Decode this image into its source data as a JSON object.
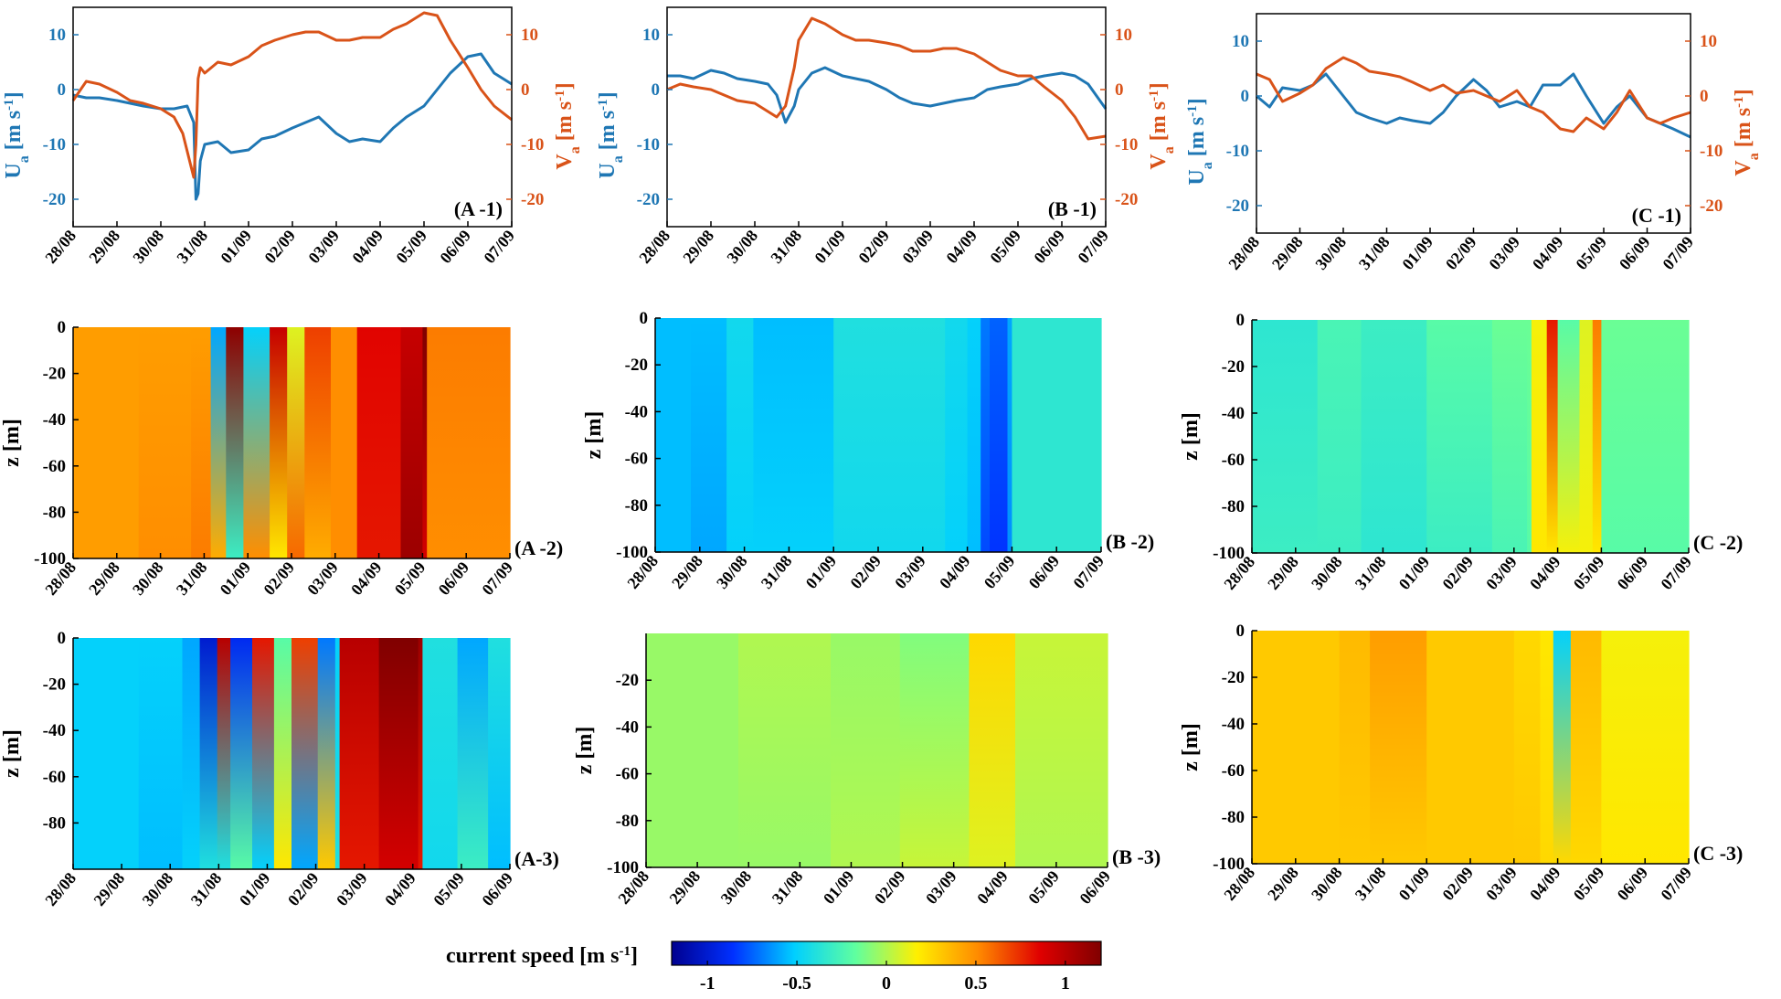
{
  "colors": {
    "ua": "#1f77b4",
    "va": "#d95319",
    "axis": "#000000"
  },
  "colormap": [
    "#00008f",
    "#0030ff",
    "#00cfff",
    "#60ff9f",
    "#ffef00",
    "#ff8a00",
    "#e00000",
    "#800000"
  ],
  "dates_full": [
    "28/08",
    "29/08",
    "30/08",
    "31/08",
    "01/09",
    "02/09",
    "03/09",
    "04/09",
    "05/09",
    "06/09",
    "07/09"
  ],
  "dates_short": [
    "28/08",
    "29/08",
    "30/08",
    "31/08",
    "01/09",
    "02/09",
    "03/09",
    "04/09",
    "05/09",
    "06/09"
  ],
  "line_labels": {
    "ua": "U",
    "ua_sub": "a",
    "ua_unit": "[m s",
    "va": "V",
    "va_sub": "a",
    "va_unit": "[m s",
    "exp": "-1",
    "close": "]"
  },
  "z_label": "z [m]",
  "colorbar": {
    "label": "current speed [m s",
    "label_exp": "-1",
    "label_close": "]",
    "ticks": [
      "-1",
      "-0.5",
      "0",
      "0.5",
      "1"
    ],
    "tick_values": [
      -1,
      -0.5,
      0,
      0.5,
      1
    ],
    "range": [
      -1.2,
      1.2
    ]
  },
  "chart_data": [
    {
      "id": "A-1",
      "type": "line",
      "panel_label": "(A -1)",
      "x_range": [
        0,
        10
      ],
      "ylim_left": [
        -25,
        15
      ],
      "ylim_right": [
        -25,
        15
      ],
      "yticks_left": [
        "10",
        "0",
        "-10",
        "-20"
      ],
      "ytick_values_left": [
        10,
        0,
        -10,
        -20
      ],
      "yticks_right": [
        "10",
        "0",
        "-10",
        "-20"
      ],
      "ytick_values_right": [
        10,
        0,
        -10,
        -20
      ],
      "series": [
        {
          "name": "Ua",
          "axis": "left",
          "x": [
            0,
            0.3,
            0.6,
            1,
            1.3,
            1.6,
            2,
            2.3,
            2.6,
            2.75,
            2.8,
            2.85,
            2.9,
            3,
            3.3,
            3.6,
            4,
            4.3,
            4.6,
            5,
            5.3,
            5.6,
            6,
            6.3,
            6.6,
            7,
            7.3,
            7.6,
            8,
            8.3,
            8.6,
            9,
            9.3,
            9.6,
            10
          ],
          "values": [
            -1,
            -1.5,
            -1.5,
            -2,
            -2.5,
            -3,
            -3.5,
            -3.5,
            -3,
            -6,
            -20,
            -19,
            -13,
            -10,
            -9.5,
            -11.5,
            -11,
            -9,
            -8.5,
            -7,
            -6,
            -5,
            -8,
            -9.5,
            -9,
            -9.5,
            -7,
            -5,
            -3,
            0,
            3,
            6,
            6.5,
            3,
            1
          ]
        },
        {
          "name": "Va",
          "axis": "right",
          "x": [
            0,
            0.3,
            0.6,
            1,
            1.3,
            1.6,
            2,
            2.3,
            2.5,
            2.75,
            2.8,
            2.85,
            2.9,
            3,
            3.3,
            3.6,
            4,
            4.3,
            4.6,
            5,
            5.3,
            5.6,
            6,
            6.3,
            6.6,
            7,
            7.3,
            7.6,
            8,
            8.3,
            8.6,
            9,
            9.3,
            9.6,
            10
          ],
          "values": [
            -2,
            1.5,
            1,
            -0.5,
            -2,
            -2.5,
            -3.5,
            -5,
            -8,
            -16,
            -10,
            2,
            4,
            3,
            5,
            4.5,
            6,
            8,
            9,
            10,
            10.5,
            10.5,
            9,
            9,
            9.5,
            9.5,
            11,
            12,
            14,
            13.5,
            9,
            4,
            0,
            -3,
            -5.5
          ]
        }
      ]
    },
    {
      "id": "B-1",
      "type": "line",
      "panel_label": "(B -1)",
      "x_range": [
        0,
        10
      ],
      "ylim_left": [
        -25,
        15
      ],
      "ylim_right": [
        -25,
        15
      ],
      "yticks_left": [
        "10",
        "0",
        "-10",
        "-20"
      ],
      "ytick_values_left": [
        10,
        0,
        -10,
        -20
      ],
      "yticks_right": [
        "10",
        "0",
        "-10",
        "-20"
      ],
      "ytick_values_right": [
        10,
        0,
        -10,
        -20
      ],
      "series": [
        {
          "name": "Ua",
          "axis": "left",
          "x": [
            0,
            0.3,
            0.6,
            1,
            1.3,
            1.6,
            2,
            2.3,
            2.5,
            2.7,
            2.9,
            3,
            3.3,
            3.6,
            4,
            4.3,
            4.6,
            5,
            5.3,
            5.6,
            6,
            6.3,
            6.6,
            7,
            7.3,
            7.6,
            8,
            8.3,
            8.6,
            9,
            9.3,
            9.6,
            10
          ],
          "values": [
            2.5,
            2.5,
            2,
            3.5,
            3,
            2,
            1.5,
            1,
            -1,
            -6,
            -3,
            0,
            3,
            4,
            2.5,
            2,
            1.5,
            0,
            -1.5,
            -2.5,
            -3,
            -2.5,
            -2,
            -1.5,
            0,
            0.5,
            1,
            2,
            2.5,
            3,
            2.5,
            1,
            -3.5
          ]
        },
        {
          "name": "Va",
          "axis": "right",
          "x": [
            0,
            0.3,
            0.6,
            1,
            1.3,
            1.6,
            2,
            2.3,
            2.5,
            2.7,
            2.9,
            3,
            3.3,
            3.6,
            4,
            4.3,
            4.6,
            5,
            5.3,
            5.6,
            6,
            6.3,
            6.6,
            7,
            7.3,
            7.6,
            8,
            8.3,
            8.6,
            9,
            9.3,
            9.6,
            10
          ],
          "values": [
            0,
            1,
            0.5,
            0,
            -1,
            -2,
            -2.5,
            -4,
            -5,
            -3,
            4,
            9,
            13,
            12,
            10,
            9,
            9,
            8.5,
            8,
            7,
            7,
            7.5,
            7.5,
            6.5,
            5,
            3.5,
            2.5,
            2.5,
            0.5,
            -2,
            -5,
            -9,
            -8.5
          ]
        }
      ]
    },
    {
      "id": "C-1",
      "type": "line",
      "panel_label": "(C -1)",
      "x_range": [
        0,
        10
      ],
      "ylim_left": [
        -25,
        15
      ],
      "ylim_right": [
        -25,
        15
      ],
      "yticks_left": [
        "10",
        "0",
        "-10",
        "-20"
      ],
      "ytick_values_left": [
        10,
        0,
        -10,
        -20
      ],
      "yticks_right": [
        "10",
        "0",
        "-10",
        "-20"
      ],
      "ytick_values_right": [
        10,
        0,
        -10,
        -20
      ],
      "series": [
        {
          "name": "Ua",
          "axis": "left",
          "x": [
            0,
            0.3,
            0.6,
            1,
            1.3,
            1.6,
            2,
            2.3,
            2.6,
            3,
            3.3,
            3.6,
            4,
            4.3,
            4.6,
            5,
            5.3,
            5.6,
            6,
            6.3,
            6.6,
            7,
            7.3,
            7.6,
            8,
            8.3,
            8.6,
            9,
            9.3,
            9.6,
            10
          ],
          "values": [
            0,
            -2,
            1.5,
            1,
            2,
            4,
            0,
            -3,
            -4,
            -5,
            -4,
            -4.5,
            -5,
            -3,
            0,
            3,
            1,
            -2,
            -1,
            -2,
            2,
            2,
            4,
            0,
            -5,
            -2,
            0,
            -4,
            -5,
            -6,
            -7.5
          ]
        },
        {
          "name": "Va",
          "axis": "right",
          "x": [
            0,
            0.3,
            0.6,
            1,
            1.3,
            1.6,
            2,
            2.3,
            2.6,
            3,
            3.3,
            3.6,
            4,
            4.3,
            4.6,
            5,
            5.3,
            5.6,
            6,
            6.3,
            6.6,
            7,
            7.3,
            7.6,
            8,
            8.3,
            8.6,
            9,
            9.3,
            9.6,
            10
          ],
          "values": [
            4,
            3,
            -1,
            0.5,
            2,
            5,
            7,
            6,
            4.5,
            4,
            3.5,
            2.5,
            1,
            2,
            0.5,
            1,
            0,
            -1,
            1,
            -2,
            -3,
            -6,
            -6.5,
            -4,
            -6,
            -3,
            1,
            -4,
            -5,
            -4,
            -3
          ]
        }
      ]
    },
    {
      "id": "A-2",
      "type": "heatmap",
      "panel_label": "(A -2)",
      "x_range": [
        0,
        10
      ],
      "z_range": [
        -100,
        0
      ],
      "yticks": [
        "0",
        "-20",
        "-40",
        "-60",
        "-80",
        "-100"
      ],
      "ytick_values": [
        0,
        -20,
        -40,
        -60,
        -80,
        -100
      ],
      "x_labels": "full",
      "columns": [
        {
          "x": 0,
          "top": 0.45,
          "bottom": 0.45
        },
        {
          "x": 1.5,
          "top": 0.45,
          "bottom": 0.5
        },
        {
          "x": 2.7,
          "top": 0.45,
          "bottom": 0.55
        },
        {
          "x": 3.15,
          "top": -0.6,
          "bottom": 0.4
        },
        {
          "x": 3.5,
          "top": 1.15,
          "bottom": -0.3
        },
        {
          "x": 3.9,
          "top": -0.5,
          "bottom": 0.5
        },
        {
          "x": 4.5,
          "top": 0.95,
          "bottom": 0.2
        },
        {
          "x": 4.9,
          "top": 0.1,
          "bottom": 0.6
        },
        {
          "x": 5.3,
          "top": 0.7,
          "bottom": 0.4
        },
        {
          "x": 5.9,
          "top": 0.5,
          "bottom": 0.5
        },
        {
          "x": 6.5,
          "top": 0.85,
          "bottom": 0.8
        },
        {
          "x": 7.5,
          "top": 0.95,
          "bottom": 1.1
        },
        {
          "x": 8.0,
          "top": 1.2,
          "bottom": 0.9
        },
        {
          "x": 8.1,
          "top": 0.55,
          "bottom": 0.5
        },
        {
          "x": 9.0,
          "top": 0.55,
          "bottom": 0.5
        },
        {
          "x": 10,
          "top": 0.45,
          "bottom": 0.4
        }
      ]
    },
    {
      "id": "B-2",
      "type": "heatmap",
      "panel_label": "(B -2)",
      "x_range": [
        0,
        10
      ],
      "z_range": [
        -100,
        0
      ],
      "yticks": [
        "0",
        "-20",
        "-40",
        "-60",
        "-80",
        "-100"
      ],
      "ytick_values": [
        0,
        -20,
        -40,
        -60,
        -80,
        -100
      ],
      "x_labels": "full",
      "columns": [
        {
          "x": 0,
          "top": -0.55,
          "bottom": -0.55
        },
        {
          "x": 0.8,
          "top": -0.55,
          "bottom": -0.6
        },
        {
          "x": 1.6,
          "top": -0.45,
          "bottom": -0.5
        },
        {
          "x": 2.2,
          "top": -0.55,
          "bottom": -0.5
        },
        {
          "x": 4.0,
          "top": -0.4,
          "bottom": -0.45
        },
        {
          "x": 6.5,
          "top": -0.45,
          "bottom": -0.5
        },
        {
          "x": 7.0,
          "top": -0.5,
          "bottom": -0.55
        },
        {
          "x": 7.3,
          "top": -0.7,
          "bottom": -0.8
        },
        {
          "x": 7.5,
          "top": -0.75,
          "bottom": -0.85
        },
        {
          "x": 7.9,
          "top": -0.6,
          "bottom": -0.65
        },
        {
          "x": 8.0,
          "top": -0.35,
          "bottom": -0.35
        },
        {
          "x": 10,
          "top": -0.35,
          "bottom": -0.35
        }
      ]
    },
    {
      "id": "C-2",
      "type": "heatmap",
      "panel_label": "(C -2)",
      "x_range": [
        0,
        10
      ],
      "z_range": [
        -100,
        0
      ],
      "yticks": [
        "0",
        "-20",
        "-40",
        "-60",
        "-80",
        "-100"
      ],
      "ytick_values": [
        0,
        -20,
        -40,
        -60,
        -80,
        -100
      ],
      "x_labels": "full",
      "columns": [
        {
          "x": 0,
          "top": -0.35,
          "bottom": -0.3
        },
        {
          "x": 1.5,
          "top": -0.25,
          "bottom": -0.3
        },
        {
          "x": 2.5,
          "top": -0.3,
          "bottom": -0.35
        },
        {
          "x": 4.0,
          "top": -0.2,
          "bottom": -0.3
        },
        {
          "x": 5.5,
          "top": -0.15,
          "bottom": -0.25
        },
        {
          "x": 6.3,
          "top": -0.15,
          "bottom": -0.2
        },
        {
          "x": 6.4,
          "top": 0.15,
          "bottom": 0.2
        },
        {
          "x": 6.75,
          "top": 0.8,
          "bottom": 0.2
        },
        {
          "x": 7.0,
          "top": -0.2,
          "bottom": 0.15
        },
        {
          "x": 7.5,
          "top": 0.1,
          "bottom": 0.15
        },
        {
          "x": 7.8,
          "top": 0.55,
          "bottom": 0.2
        },
        {
          "x": 8.0,
          "top": -0.15,
          "bottom": -0.2
        },
        {
          "x": 10,
          "top": -0.2,
          "bottom": -0.2
        }
      ]
    },
    {
      "id": "A-3",
      "type": "heatmap",
      "panel_label": "(A-3)",
      "x_range": [
        0,
        10
      ],
      "z_range": [
        -100,
        0
      ],
      "yticks": [
        "0",
        "-20",
        "-40",
        "-60",
        "-80"
      ],
      "ytick_values": [
        0,
        -20,
        -40,
        -60,
        -80
      ],
      "x_labels": "short",
      "columns": [
        {
          "x": 0,
          "top": -0.5,
          "bottom": -0.5
        },
        {
          "x": 1.5,
          "top": -0.5,
          "bottom": -0.55
        },
        {
          "x": 2.5,
          "top": -0.6,
          "bottom": -0.5
        },
        {
          "x": 2.9,
          "top": -1.0,
          "bottom": -0.4
        },
        {
          "x": 3.3,
          "top": 1.0,
          "bottom": -0.4
        },
        {
          "x": 3.6,
          "top": -0.9,
          "bottom": -0.2
        },
        {
          "x": 4.1,
          "top": 0.8,
          "bottom": -0.5
        },
        {
          "x": 4.6,
          "top": -0.2,
          "bottom": 0.2
        },
        {
          "x": 5.0,
          "top": 0.7,
          "bottom": -0.6
        },
        {
          "x": 5.6,
          "top": -0.7,
          "bottom": 0.3
        },
        {
          "x": 6.0,
          "top": -0.5,
          "bottom": -0.4
        },
        {
          "x": 6.1,
          "top": 1.0,
          "bottom": 0.8
        },
        {
          "x": 7.0,
          "top": 1.2,
          "bottom": 0.9
        },
        {
          "x": 7.9,
          "top": 1.1,
          "bottom": 0.8
        },
        {
          "x": 8.0,
          "top": -0.4,
          "bottom": -0.45
        },
        {
          "x": 8.8,
          "top": -0.6,
          "bottom": -0.3
        },
        {
          "x": 9.5,
          "top": -0.4,
          "bottom": -0.55
        },
        {
          "x": 10,
          "top": -0.5,
          "bottom": -0.5
        }
      ]
    },
    {
      "id": "B-3",
      "type": "heatmap",
      "panel_label": "(B -3)",
      "x_range": [
        0,
        10
      ],
      "z_range": [
        -100,
        0
      ],
      "yticks": [
        "-20",
        "-40",
        "-60",
        "-80",
        "-100"
      ],
      "ytick_values": [
        -20,
        -40,
        -60,
        -80,
        -100
      ],
      "x_labels": "short",
      "columns": [
        {
          "x": 0,
          "top": -0.05,
          "bottom": -0.05
        },
        {
          "x": 2.0,
          "top": 0.0,
          "bottom": -0.05
        },
        {
          "x": 4.0,
          "top": -0.05,
          "bottom": 0.0
        },
        {
          "x": 5.5,
          "top": -0.1,
          "bottom": 0.05
        },
        {
          "x": 7.0,
          "top": 0.25,
          "bottom": 0.1
        },
        {
          "x": 8.0,
          "top": 0.05,
          "bottom": 0.0
        },
        {
          "x": 10,
          "top": -0.05,
          "bottom": -0.05
        }
      ]
    },
    {
      "id": "C-3",
      "type": "heatmap",
      "panel_label": "(C -3)",
      "x_range": [
        0,
        10
      ],
      "z_range": [
        -100,
        0
      ],
      "yticks": [
        "0",
        "-20",
        "-40",
        "-60",
        "-80",
        "-100"
      ],
      "ytick_values": [
        0,
        -20,
        -40,
        -60,
        -80,
        -100
      ],
      "x_labels": "full",
      "columns": [
        {
          "x": 0,
          "top": 0.3,
          "bottom": 0.3
        },
        {
          "x": 2.0,
          "top": 0.35,
          "bottom": 0.3
        },
        {
          "x": 2.7,
          "top": 0.45,
          "bottom": 0.3
        },
        {
          "x": 4.0,
          "top": 0.3,
          "bottom": 0.3
        },
        {
          "x": 6.0,
          "top": 0.25,
          "bottom": 0.3
        },
        {
          "x": 6.6,
          "top": 0.2,
          "bottom": 0.25
        },
        {
          "x": 6.9,
          "top": -0.5,
          "bottom": 0.25
        },
        {
          "x": 7.3,
          "top": 0.35,
          "bottom": 0.25
        },
        {
          "x": 8.0,
          "top": 0.15,
          "bottom": 0.2
        },
        {
          "x": 10,
          "top": 0.2,
          "bottom": 0.2
        }
      ]
    }
  ]
}
